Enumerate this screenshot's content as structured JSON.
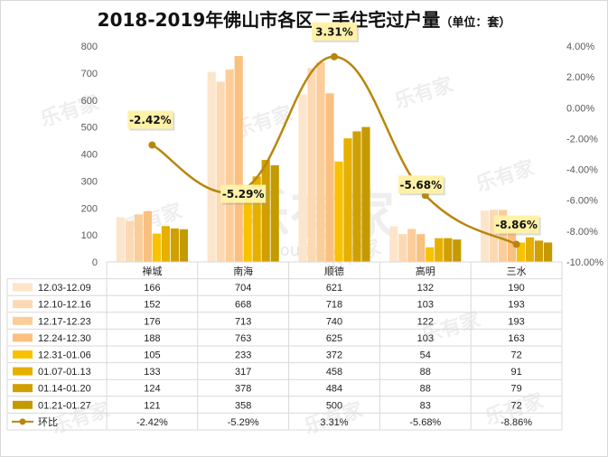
{
  "title": "2018-2019年佛山市各区二手住宅过户量",
  "unit": "（单位：套）",
  "watermark": {
    "logo": "乐有家",
    "site": "leyoujia.com"
  },
  "colors": {
    "series": [
      "#fde5cc",
      "#fcd9b3",
      "#fbcd99",
      "#fac080",
      "#f9c200",
      "#e6b000",
      "#cfa000",
      "#c49a00"
    ],
    "line": "#b8860b",
    "callout_bg": "#fff2a8",
    "grid": "#d9d9d9"
  },
  "chart_data": {
    "type": "bar",
    "categories": [
      "禅城",
      "南海",
      "顺德",
      "高明",
      "三水"
    ],
    "series": [
      {
        "name": "12.03-12.09",
        "values": [
          166,
          704,
          621,
          132,
          190
        ]
      },
      {
        "name": "12.10-12.16",
        "values": [
          152,
          668,
          718,
          103,
          193
        ]
      },
      {
        "name": "12.17-12.23",
        "values": [
          176,
          713,
          740,
          122,
          193
        ]
      },
      {
        "name": "12.24-12.30",
        "values": [
          188,
          763,
          625,
          103,
          163
        ]
      },
      {
        "name": "12.31-01.06",
        "values": [
          105,
          233,
          372,
          54,
          72
        ]
      },
      {
        "name": "01.07-01.13",
        "values": [
          133,
          317,
          458,
          88,
          91
        ]
      },
      {
        "name": "01.14-01.20",
        "values": [
          124,
          378,
          484,
          88,
          79
        ]
      },
      {
        "name": "01.21-01.27",
        "values": [
          121,
          358,
          500,
          83,
          72
        ]
      }
    ],
    "line_series": {
      "name": "环比",
      "values": [
        -2.42,
        -5.29,
        3.31,
        -5.68,
        -8.86
      ],
      "labels": [
        "-2.42%",
        "-5.29%",
        "3.31%",
        "-5.68%",
        "-8.86%"
      ]
    },
    "y_left": {
      "min": 0,
      "max": 800,
      "ticks": [
        "0",
        "100",
        "200",
        "300",
        "400",
        "500",
        "600",
        "700",
        "800"
      ]
    },
    "y_right": {
      "min": -10,
      "max": 4,
      "ticks": [
        "-10.00%",
        "-8.00%",
        "-6.00%",
        "-4.00%",
        "-2.00%",
        "0.00%",
        "2.00%",
        "4.00%"
      ]
    },
    "data_table": true
  }
}
